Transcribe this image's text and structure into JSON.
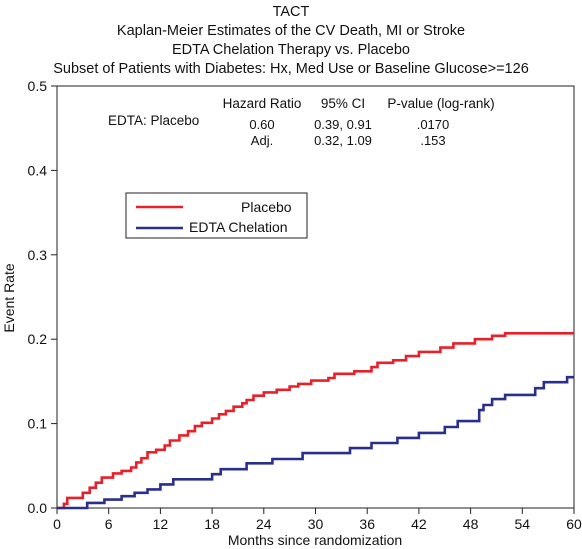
{
  "titles": [
    "TACT",
    "Kaplan-Meier Estimates of the CV Death, MI or Stroke",
    "EDTA Chelation Therapy vs. Placebo",
    "Subset of Patients with Diabetes: Hx, Med Use or Baseline Glucose>=126"
  ],
  "stats_table": {
    "row_label": "EDTA: Placebo",
    "headers": [
      "Hazard Ratio",
      "95% CI",
      "P-value (log-rank)"
    ],
    "rows": [
      [
        "0.60",
        "0.39, 0.91",
        ".0170"
      ],
      [
        "Adj.",
        "0.32, 1.09",
        ".153"
      ]
    ]
  },
  "colors": {
    "placebo": "#e8202a",
    "edta": "#2b2f8c"
  },
  "chart_data": {
    "type": "line",
    "title": "",
    "xlabel": "Months since randomization",
    "ylabel": "Event Rate",
    "xlim": [
      0,
      60
    ],
    "ylim": [
      0,
      0.5
    ],
    "xticks": [
      0,
      6,
      12,
      18,
      24,
      30,
      36,
      42,
      48,
      54,
      60
    ],
    "yticks": [
      0.0,
      0.1,
      0.2,
      0.3,
      0.4,
      0.5
    ],
    "yticklabels": [
      "0.0",
      "0.1",
      "0.2",
      "0.3",
      "0.4",
      "0.5"
    ],
    "legend_position": "upper-left",
    "series": [
      {
        "name": "Placebo",
        "step": true,
        "points": [
          [
            0,
            0
          ],
          [
            0.8,
            0.005
          ],
          [
            1.2,
            0.012
          ],
          [
            3,
            0.018
          ],
          [
            3.8,
            0.024
          ],
          [
            4.5,
            0.03
          ],
          [
            5.2,
            0.036
          ],
          [
            6.5,
            0.041
          ],
          [
            7.5,
            0.044
          ],
          [
            8.6,
            0.048
          ],
          [
            9.2,
            0.054
          ],
          [
            9.8,
            0.059
          ],
          [
            10.5,
            0.066
          ],
          [
            11.5,
            0.069
          ],
          [
            12.5,
            0.074
          ],
          [
            13.1,
            0.08
          ],
          [
            14.2,
            0.086
          ],
          [
            15.2,
            0.091
          ],
          [
            16,
            0.097
          ],
          [
            16.8,
            0.101
          ],
          [
            18,
            0.106
          ],
          [
            18.8,
            0.111
          ],
          [
            19.6,
            0.115
          ],
          [
            20.5,
            0.12
          ],
          [
            21.5,
            0.124
          ],
          [
            22,
            0.128
          ],
          [
            22.8,
            0.133
          ],
          [
            24,
            0.137
          ],
          [
            25.5,
            0.14
          ],
          [
            27,
            0.144
          ],
          [
            28,
            0.147
          ],
          [
            29.5,
            0.151
          ],
          [
            31.5,
            0.154
          ],
          [
            32.2,
            0.159
          ],
          [
            34.5,
            0.162
          ],
          [
            36.5,
            0.167
          ],
          [
            37.2,
            0.172
          ],
          [
            39,
            0.175
          ],
          [
            40.5,
            0.18
          ],
          [
            42,
            0.185
          ],
          [
            44.5,
            0.19
          ],
          [
            46,
            0.195
          ],
          [
            48.5,
            0.2
          ],
          [
            50.5,
            0.204
          ],
          [
            52,
            0.207
          ],
          [
            60,
            0.207
          ]
        ]
      },
      {
        "name": "EDTA Chelation",
        "step": true,
        "points": [
          [
            0,
            0
          ],
          [
            3.5,
            0.006
          ],
          [
            5.5,
            0.01
          ],
          [
            7.5,
            0.014
          ],
          [
            9,
            0.018
          ],
          [
            10.5,
            0.022
          ],
          [
            12,
            0.028
          ],
          [
            13.5,
            0.034
          ],
          [
            18,
            0.04
          ],
          [
            19,
            0.046
          ],
          [
            22,
            0.053
          ],
          [
            25,
            0.058
          ],
          [
            28.5,
            0.065
          ],
          [
            34,
            0.071
          ],
          [
            36.5,
            0.077
          ],
          [
            39.5,
            0.083
          ],
          [
            42,
            0.089
          ],
          [
            45,
            0.096
          ],
          [
            46.5,
            0.103
          ],
          [
            49,
            0.116
          ],
          [
            49.5,
            0.122
          ],
          [
            50.5,
            0.129
          ],
          [
            52,
            0.134
          ],
          [
            55.5,
            0.142
          ],
          [
            56.5,
            0.149
          ],
          [
            59.2,
            0.155
          ],
          [
            60,
            0.155
          ]
        ]
      }
    ]
  }
}
